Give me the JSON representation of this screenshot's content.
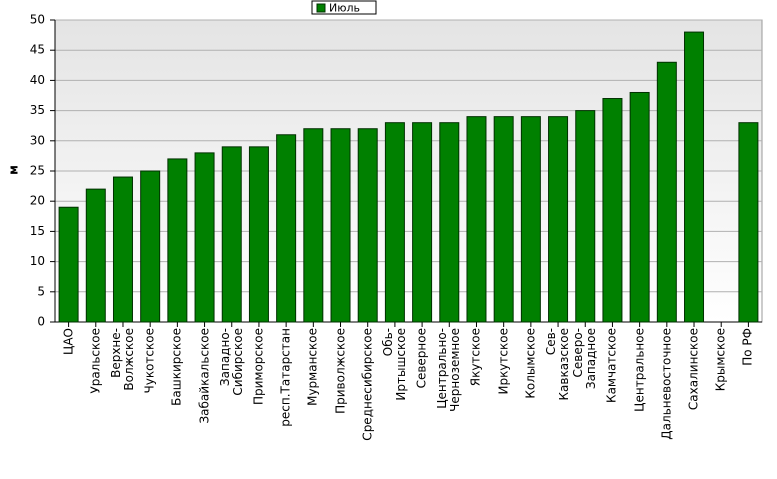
{
  "chart_data": {
    "type": "bar",
    "y_label": "м",
    "legend": "top",
    "categories": [
      "ЦАО",
      "Уральское",
      "Верхне-\nВолжское",
      "Чукотское",
      "Башкирское",
      "Забайкальское",
      "Западно-\nСибирское",
      "Приморское",
      "респ.Татарстан",
      "Мурманское",
      "Приволжское",
      "Среднесибирское",
      "Обь-\nИртышское",
      "Северное",
      "Центрально-\nЧерноземное",
      "Якутское",
      "Иркутское",
      "Колымское",
      "Сев-\nКавказское",
      "Северо-\nЗападное",
      "Камчатское",
      "Центральное",
      "Дальневосточное",
      "Сахалинское",
      "Крымское",
      "По РФ"
    ],
    "series": [
      {
        "name": "Июль",
        "color": "#008000",
        "values": [
          19,
          22,
          24,
          25,
          27,
          28,
          29,
          29,
          31,
          32,
          32,
          32,
          33,
          33,
          33,
          34,
          34,
          34,
          34,
          35,
          37,
          38,
          43,
          48,
          null,
          33
        ]
      }
    ],
    "ylim": [
      0,
      50
    ],
    "yticks": [
      0,
      5,
      10,
      15,
      20,
      25,
      30,
      35,
      40,
      45,
      50
    ],
    "grid": true
  }
}
